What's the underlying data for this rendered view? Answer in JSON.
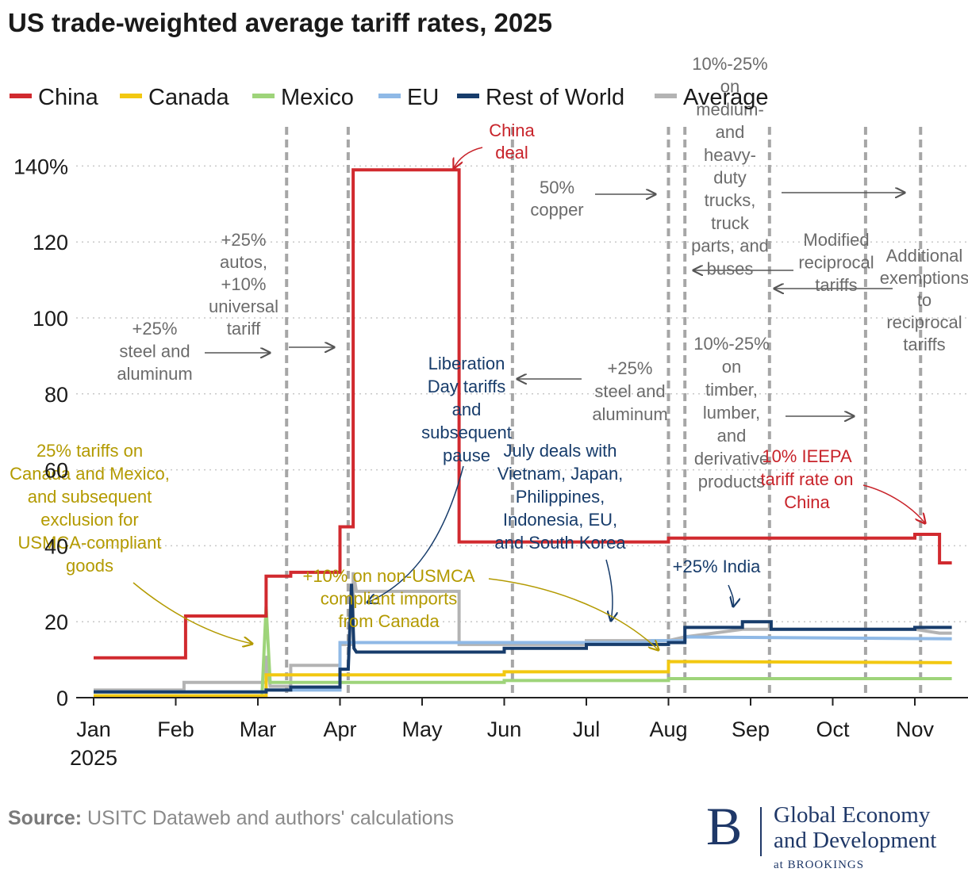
{
  "title": "US trade-weighted average tariff rates, 2025",
  "source_label": "Source:",
  "source_text": " USITC Dataweb and authors' calculations",
  "logo": {
    "letter": "B",
    "line1": "Global Economy",
    "line2": "and Development",
    "line3": "at BROOKINGS"
  },
  "colors": {
    "China": "#d12a2f",
    "Canada": "#f2c811",
    "Mexico": "#9ed47a",
    "EU": "#8fb9e6",
    "Rest of World": "#173c6b",
    "Average": "#b3b3b3",
    "grid": "#c8c8c8",
    "event_line": "#a6a6a6",
    "annot_gray": "#6b6b6b",
    "annot_red": "#c8232a",
    "annot_gold": "#b39a00",
    "annot_navy": "#173c6b"
  },
  "chart_data": {
    "type": "line",
    "title": "US trade-weighted average tariff rates, 2025",
    "xlabel": "",
    "ylabel": "",
    "xlim": [
      0,
      10.45
    ],
    "ylim": [
      0,
      140
    ],
    "x_ticks": [
      {
        "x": 0,
        "label": "Jan",
        "label2": "2025"
      },
      {
        "x": 1,
        "label": "Feb"
      },
      {
        "x": 2,
        "label": "Mar"
      },
      {
        "x": 3,
        "label": "Apr"
      },
      {
        "x": 4,
        "label": "May"
      },
      {
        "x": 5,
        "label": "Jun"
      },
      {
        "x": 6,
        "label": "Jul"
      },
      {
        "x": 7,
        "label": "Aug"
      },
      {
        "x": 8,
        "label": "Sep"
      },
      {
        "x": 9,
        "label": "Oct"
      },
      {
        "x": 10,
        "label": "Nov"
      }
    ],
    "y_ticks": [
      {
        "v": 0,
        "label": "0"
      },
      {
        "v": 20,
        "label": "20"
      },
      {
        "v": 40,
        "label": "40"
      },
      {
        "v": 60,
        "label": "60"
      },
      {
        "v": 80,
        "label": "80"
      },
      {
        "v": 100,
        "label": "100"
      },
      {
        "v": 120,
        "label": "120"
      },
      {
        "v": 140,
        "label": "140%"
      }
    ],
    "grid": true,
    "legend_position": "top",
    "event_dates": [
      2.35,
      3.1,
      5.1,
      7.0,
      7.2,
      8.23,
      9.4,
      10.07
    ],
    "series": [
      {
        "name": "China",
        "points": [
          [
            0,
            10.5
          ],
          [
            1.12,
            10.5
          ],
          [
            1.12,
            21.5
          ],
          [
            2.1,
            21.5
          ],
          [
            2.1,
            32
          ],
          [
            2.4,
            32
          ],
          [
            2.4,
            33
          ],
          [
            3.0,
            33
          ],
          [
            3.0,
            45
          ],
          [
            3.16,
            45
          ],
          [
            3.16,
            139
          ],
          [
            4.45,
            139
          ],
          [
            4.45,
            41
          ],
          [
            7.0,
            41
          ],
          [
            7.0,
            42
          ],
          [
            10.0,
            42
          ],
          [
            10.0,
            43
          ],
          [
            10.3,
            43
          ],
          [
            10.3,
            35.5
          ],
          [
            10.45,
            35.5
          ]
        ]
      },
      {
        "name": "Canada",
        "points": [
          [
            0,
            0.5
          ],
          [
            2.1,
            0.5
          ],
          [
            2.1,
            6
          ],
          [
            5.0,
            6
          ],
          [
            5.0,
            6.8
          ],
          [
            7.0,
            6.8
          ],
          [
            7.0,
            9.5
          ],
          [
            10.45,
            9.2
          ]
        ]
      },
      {
        "name": "Mexico",
        "points": [
          [
            0,
            0.5
          ],
          [
            2.05,
            0.5
          ],
          [
            2.1,
            24
          ],
          [
            2.15,
            4
          ],
          [
            5.0,
            4
          ],
          [
            5.0,
            4.5
          ],
          [
            7.0,
            4.5
          ],
          [
            7.0,
            5
          ],
          [
            10.45,
            5
          ]
        ]
      },
      {
        "name": "EU",
        "points": [
          [
            0,
            1.5
          ],
          [
            2.1,
            1.5
          ],
          [
            2.1,
            2
          ],
          [
            3.0,
            2
          ],
          [
            3.0,
            14.5
          ],
          [
            6.8,
            14.5
          ],
          [
            6.8,
            15
          ],
          [
            7.2,
            15
          ],
          [
            7.2,
            16
          ],
          [
            10.45,
            15.5
          ]
        ]
      },
      {
        "name": "Rest of World",
        "points": [
          [
            0,
            1.5
          ],
          [
            2.1,
            1.5
          ],
          [
            2.1,
            2
          ],
          [
            2.4,
            2
          ],
          [
            2.4,
            2.8
          ],
          [
            3.0,
            2.8
          ],
          [
            3.0,
            7.5
          ],
          [
            3.1,
            7.5
          ],
          [
            3.14,
            30
          ],
          [
            3.17,
            13
          ],
          [
            3.2,
            12
          ],
          [
            5.0,
            12
          ],
          [
            5.0,
            13
          ],
          [
            6.0,
            13
          ],
          [
            6.0,
            14
          ],
          [
            7.0,
            14
          ],
          [
            7.0,
            14.5
          ],
          [
            7.2,
            14.5
          ],
          [
            7.2,
            18.5
          ],
          [
            7.9,
            18.5
          ],
          [
            7.9,
            20
          ],
          [
            8.25,
            20
          ],
          [
            8.25,
            18
          ],
          [
            10.0,
            18
          ],
          [
            10.0,
            18.5
          ],
          [
            10.45,
            18.5
          ]
        ]
      },
      {
        "name": "Average",
        "points": [
          [
            0,
            2
          ],
          [
            1.1,
            2
          ],
          [
            1.1,
            4
          ],
          [
            2.1,
            4
          ],
          [
            2.1,
            11
          ],
          [
            2.15,
            3
          ],
          [
            2.4,
            3
          ],
          [
            2.4,
            8.5
          ],
          [
            3.0,
            8.5
          ],
          [
            3.0,
            14
          ],
          [
            3.16,
            14
          ],
          [
            3.16,
            33
          ],
          [
            3.2,
            28
          ],
          [
            4.45,
            28
          ],
          [
            4.45,
            14
          ],
          [
            6.0,
            14
          ],
          [
            6.0,
            15
          ],
          [
            7.0,
            15
          ],
          [
            7.2,
            16
          ],
          [
            7.9,
            18
          ],
          [
            10.0,
            18
          ],
          [
            10.3,
            17
          ],
          [
            10.45,
            17
          ]
        ]
      }
    ],
    "annotations": [
      {
        "key": "a_china_deal",
        "color": "annot_red",
        "lines": [
          "China",
          "deal"
        ]
      },
      {
        "key": "a_copper",
        "color": "annot_gray",
        "lines": [
          "50%",
          "copper"
        ]
      },
      {
        "key": "a_trucks",
        "color": "annot_gray",
        "lines": [
          "10%-25%",
          "on",
          "medium-",
          "and",
          "heavy-",
          "duty",
          "trucks,",
          "truck",
          "parts, and",
          "buses"
        ]
      },
      {
        "key": "a_modified",
        "color": "annot_gray",
        "lines": [
          "Modified",
          "reciprocal",
          "tariffs"
        ]
      },
      {
        "key": "a_addl",
        "color": "annot_gray",
        "lines": [
          "Additional",
          "exemptions",
          "to",
          "reciprocal",
          "tariffs"
        ]
      },
      {
        "key": "a_autos",
        "color": "annot_gray",
        "lines": [
          "+25%",
          "autos,",
          "+10%",
          "universal",
          "tariff"
        ]
      },
      {
        "key": "a_steel1",
        "color": "annot_gray",
        "lines": [
          "+25%",
          "steel and",
          "aluminum"
        ]
      },
      {
        "key": "a_liberation",
        "color": "annot_navy",
        "lines": [
          "Liberation",
          "Day tariffs",
          "and",
          "subsequent",
          "pause"
        ]
      },
      {
        "key": "a_steel2",
        "color": "annot_gray",
        "lines": [
          "+25%",
          "steel and",
          "aluminum"
        ]
      },
      {
        "key": "a_timber",
        "color": "annot_gray",
        "lines": [
          "10%-25%",
          "on",
          "timber,",
          "lumber,",
          "and",
          "derivative",
          "products"
        ]
      },
      {
        "key": "a_canmex",
        "color": "annot_gold",
        "lines": [
          "25% tariffs on",
          "Canada and Mexico,",
          "and subsequent",
          "exclusion for",
          "USMCA-compliant",
          "goods"
        ]
      },
      {
        "key": "a_july",
        "color": "annot_navy",
        "lines": [
          "July deals with",
          "Vietnam, Japan,",
          "Philippines,",
          "Indonesia, EU,",
          "and South Korea"
        ]
      },
      {
        "key": "a_ieepa",
        "color": "annot_red",
        "lines": [
          "10% IEEPA",
          "tariff rate on",
          "China"
        ]
      },
      {
        "key": "a_usmca",
        "color": "annot_gold",
        "lines": [
          "+10% on non-USMCA",
          "compliant imports",
          "from Canada"
        ]
      },
      {
        "key": "a_india",
        "color": "annot_navy",
        "lines": [
          "+25% India"
        ]
      }
    ]
  }
}
